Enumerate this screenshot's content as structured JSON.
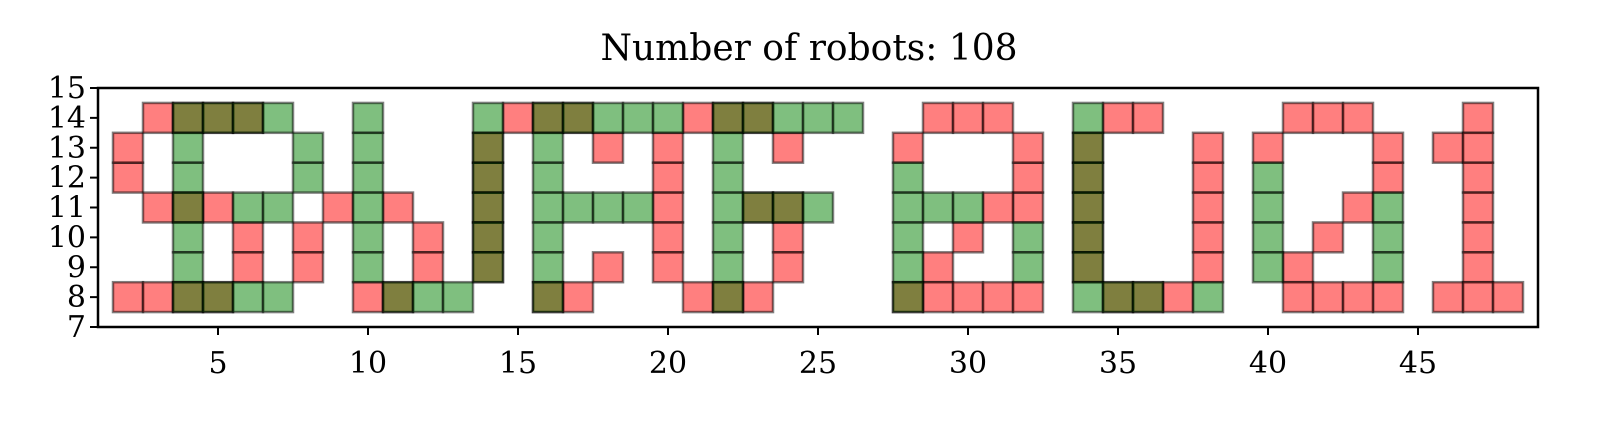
{
  "chart_data": {
    "type": "heatmap",
    "title": "Number of robots: 108",
    "xlabel": "",
    "ylabel": "",
    "xlim": [
      1,
      49
    ],
    "ylim": [
      7,
      15
    ],
    "xticks": [
      5,
      10,
      15,
      20,
      25,
      30,
      35,
      40,
      45
    ],
    "yticks": [
      7,
      8,
      9,
      10,
      11,
      12,
      13,
      14,
      15
    ],
    "grid": false,
    "colors": {
      "red": "#ff0000",
      "green": "#008000",
      "alpha": 0.5
    },
    "cell_size": 1,
    "cells": {
      "red": [
        [
          2,
          12
        ],
        [
          2,
          13
        ],
        [
          3,
          11
        ],
        [
          3,
          14
        ],
        [
          5,
          11
        ],
        [
          6,
          10
        ],
        [
          6,
          9
        ],
        [
          9,
          11
        ],
        [
          10,
          8
        ],
        [
          11,
          11
        ],
        [
          12,
          10
        ],
        [
          12,
          9
        ],
        [
          15,
          14
        ],
        [
          16,
          8
        ],
        [
          17,
          8
        ],
        [
          18,
          13
        ],
        [
          18,
          9
        ],
        [
          20,
          13
        ],
        [
          20,
          12
        ],
        [
          20,
          11
        ],
        [
          20,
          10
        ],
        [
          20,
          9
        ],
        [
          21,
          14
        ],
        [
          21,
          8
        ],
        [
          23,
          8
        ],
        [
          24,
          13
        ],
        [
          24,
          10
        ],
        [
          24,
          9
        ],
        [
          29,
          9
        ],
        [
          29,
          8
        ],
        [
          30,
          10
        ],
        [
          30,
          8
        ],
        [
          31,
          8
        ],
        [
          35,
          14
        ],
        [
          36,
          14
        ],
        [
          37,
          8
        ],
        [
          38,
          13
        ],
        [
          38,
          12
        ],
        [
          38,
          11
        ],
        [
          38,
          10
        ],
        [
          38,
          9
        ],
        [
          41,
          9
        ],
        [
          41,
          8
        ],
        [
          42,
          10
        ],
        [
          43,
          11
        ],
        [
          44,
          8
        ],
        [
          46,
          13
        ],
        [
          46,
          8
        ],
        [
          47,
          14
        ],
        [
          47,
          13
        ],
        [
          47,
          12
        ],
        [
          47,
          11
        ],
        [
          47,
          10
        ],
        [
          47,
          9
        ],
        [
          47,
          8
        ],
        [
          48,
          8
        ],
        [
          2,
          8
        ],
        [
          3,
          8
        ],
        [
          8,
          10
        ],
        [
          8,
          9
        ],
        [
          10,
          8
        ],
        [
          11,
          8
        ],
        [
          16,
          8
        ],
        [
          22,
          8
        ],
        [
          29,
          14
        ],
        [
          30,
          14
        ],
        [
          31,
          14
        ],
        [
          32,
          8
        ],
        [
          32,
          11
        ],
        [
          32,
          12
        ],
        [
          32,
          13
        ],
        [
          28,
          13
        ],
        [
          31,
          11
        ],
        [
          37,
          8
        ],
        [
          40,
          13
        ],
        [
          41,
          14
        ],
        [
          42,
          14
        ],
        [
          43,
          14
        ],
        [
          44,
          13
        ],
        [
          44,
          12
        ],
        [
          41,
          8
        ],
        [
          42,
          8
        ],
        [
          43,
          8
        ],
        [
          5,
          11
        ],
        [
          4,
          11
        ],
        [
          4,
          14
        ],
        [
          5,
          14
        ],
        [
          6,
          14
        ],
        [
          11,
          8
        ],
        [
          14,
          10
        ],
        [
          14,
          11
        ],
        [
          14,
          12
        ],
        [
          14,
          13
        ],
        [
          14,
          9
        ],
        [
          17,
          14
        ],
        [
          16,
          14
        ],
        [
          22,
          14
        ],
        [
          23,
          14
        ],
        [
          23,
          11
        ],
        [
          24,
          11
        ],
        [
          28,
          8
        ],
        [
          34,
          13
        ],
        [
          34,
          12
        ],
        [
          34,
          11
        ],
        [
          34,
          10
        ],
        [
          34,
          9
        ],
        [
          35,
          8
        ],
        [
          36,
          8
        ],
        [
          4,
          8
        ],
        [
          5,
          8
        ]
      ],
      "green": [
        [
          4,
          14
        ],
        [
          4,
          13
        ],
        [
          4,
          12
        ],
        [
          4,
          11
        ],
        [
          4,
          10
        ],
        [
          4,
          9
        ],
        [
          4,
          8
        ],
        [
          5,
          14
        ],
        [
          5,
          8
        ],
        [
          6,
          14
        ],
        [
          6,
          11
        ],
        [
          6,
          8
        ],
        [
          7,
          14
        ],
        [
          7,
          11
        ],
        [
          7,
          8
        ],
        [
          8,
          13
        ],
        [
          8,
          12
        ],
        [
          10,
          14
        ],
        [
          10,
          13
        ],
        [
          10,
          12
        ],
        [
          10,
          11
        ],
        [
          10,
          10
        ],
        [
          10,
          9
        ],
        [
          11,
          8
        ],
        [
          12,
          8
        ],
        [
          13,
          8
        ],
        [
          14,
          14
        ],
        [
          14,
          13
        ],
        [
          14,
          12
        ],
        [
          14,
          11
        ],
        [
          14,
          10
        ],
        [
          14,
          9
        ],
        [
          16,
          14
        ],
        [
          16,
          13
        ],
        [
          16,
          12
        ],
        [
          16,
          11
        ],
        [
          16,
          10
        ],
        [
          16,
          9
        ],
        [
          16,
          8
        ],
        [
          17,
          14
        ],
        [
          17,
          11
        ],
        [
          18,
          14
        ],
        [
          18,
          11
        ],
        [
          19,
          14
        ],
        [
          19,
          11
        ],
        [
          20,
          14
        ],
        [
          22,
          14
        ],
        [
          22,
          13
        ],
        [
          22,
          12
        ],
        [
          22,
          11
        ],
        [
          22,
          10
        ],
        [
          22,
          9
        ],
        [
          22,
          8
        ],
        [
          23,
          14
        ],
        [
          23,
          11
        ],
        [
          24,
          14
        ],
        [
          24,
          11
        ],
        [
          25,
          14
        ],
        [
          25,
          11
        ],
        [
          26,
          14
        ],
        [
          28,
          12
        ],
        [
          28,
          11
        ],
        [
          28,
          10
        ],
        [
          28,
          9
        ],
        [
          28,
          8
        ],
        [
          29,
          11
        ],
        [
          30,
          11
        ],
        [
          32,
          10
        ],
        [
          32,
          9
        ],
        [
          34,
          14
        ],
        [
          34,
          13
        ],
        [
          34,
          12
        ],
        [
          34,
          11
        ],
        [
          34,
          10
        ],
        [
          34,
          9
        ],
        [
          34,
          8
        ],
        [
          35,
          8
        ],
        [
          36,
          8
        ],
        [
          38,
          8
        ],
        [
          40,
          12
        ],
        [
          40,
          11
        ],
        [
          40,
          10
        ],
        [
          40,
          9
        ],
        [
          44,
          11
        ],
        [
          44,
          10
        ],
        [
          44,
          9
        ]
      ]
    }
  }
}
